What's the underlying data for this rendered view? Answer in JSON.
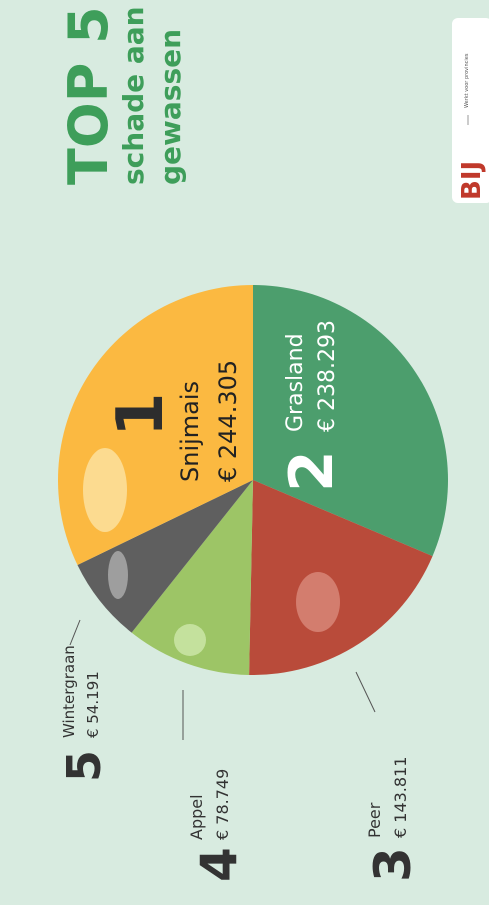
{
  "chart_data": {
    "type": "pie",
    "title": "TOP 5",
    "subtitle": [
      "schade aan",
      "gewassen"
    ],
    "categories": [
      "Grasland",
      "Peer",
      "Appel",
      "Wintergraan",
      "Snijmais"
    ],
    "values": [
      238293,
      143811,
      78749,
      54191,
      244305
    ],
    "value_labels": [
      "€ 238.293",
      "€ 143.811",
      "€ 78.749",
      "€ 54.191",
      "€ 244.305"
    ],
    "ranks": [
      "2",
      "3",
      "4",
      "5",
      "1"
    ],
    "colors": [
      "#4c9e6d",
      "#b94b3a",
      "#9dc566",
      "#5f5f5f",
      "#fbb941"
    ]
  },
  "logo": {
    "text": "BIJ",
    "tagline": "Werkt voor provincies"
  }
}
